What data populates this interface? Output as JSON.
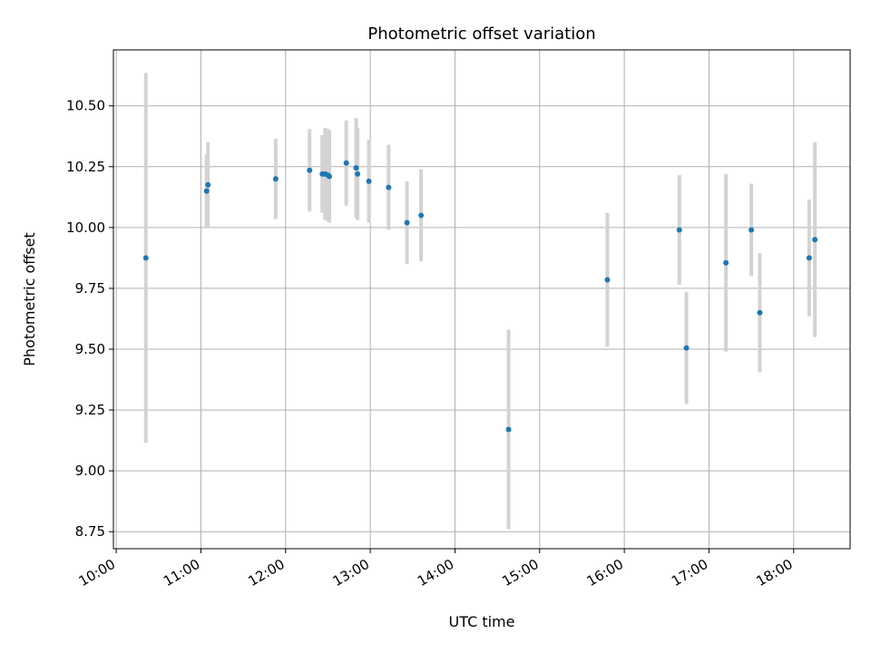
{
  "chart_data": {
    "type": "scatter",
    "title": "Photometric offset variation",
    "xlabel": "UTC time",
    "ylabel": "Photometric offset",
    "xlim": [
      "09:58",
      "18:40"
    ],
    "ylim": [
      8.68,
      10.73
    ],
    "grid": true,
    "x_ticks": [
      "10:00",
      "11:00",
      "12:00",
      "13:00",
      "14:00",
      "15:00",
      "16:00",
      "17:00",
      "18:00"
    ],
    "y_ticks": [
      "8.75",
      "9.00",
      "9.25",
      "9.50",
      "9.75",
      "10.00",
      "10.25",
      "10.50"
    ],
    "marker_color": "#1f77b4",
    "errorbar_color": "#d3d3d3",
    "series": [
      {
        "points": [
          {
            "x": "10:21",
            "y": 9.875,
            "err": 0.76
          },
          {
            "x": "11:04",
            "y": 10.15,
            "err": 0.15
          },
          {
            "x": "11:05",
            "y": 10.175,
            "err": 0.175
          },
          {
            "x": "11:53",
            "y": 10.2,
            "err": 0.165
          },
          {
            "x": "12:17",
            "y": 10.235,
            "err": 0.17
          },
          {
            "x": "12:26",
            "y": 10.22,
            "err": 0.16
          },
          {
            "x": "12:28",
            "y": 10.22,
            "err": 0.19
          },
          {
            "x": "12:30",
            "y": 10.215,
            "err": 0.19
          },
          {
            "x": "12:31",
            "y": 10.21,
            "err": 0.19
          },
          {
            "x": "12:43",
            "y": 10.265,
            "err": 0.175
          },
          {
            "x": "12:50",
            "y": 10.245,
            "err": 0.205
          },
          {
            "x": "12:51",
            "y": 10.22,
            "err": 0.19
          },
          {
            "x": "12:59",
            "y": 10.19,
            "err": 0.17
          },
          {
            "x": "13:13",
            "y": 10.165,
            "err": 0.175
          },
          {
            "x": "13:26",
            "y": 10.02,
            "err": 0.17
          },
          {
            "x": "13:36",
            "y": 10.05,
            "err": 0.19
          },
          {
            "x": "14:38",
            "y": 9.17,
            "err": 0.41
          },
          {
            "x": "15:48",
            "y": 9.785,
            "err": 0.275
          },
          {
            "x": "16:39",
            "y": 9.99,
            "err": 0.225
          },
          {
            "x": "16:44",
            "y": 9.505,
            "err": 0.23
          },
          {
            "x": "17:12",
            "y": 9.855,
            "err": 0.365
          },
          {
            "x": "17:30",
            "y": 9.99,
            "err": 0.19
          },
          {
            "x": "17:36",
            "y": 9.65,
            "err": 0.245
          },
          {
            "x": "18:11",
            "y": 9.875,
            "err": 0.24
          },
          {
            "x": "18:15",
            "y": 9.95,
            "err": 0.4
          }
        ]
      }
    ]
  }
}
